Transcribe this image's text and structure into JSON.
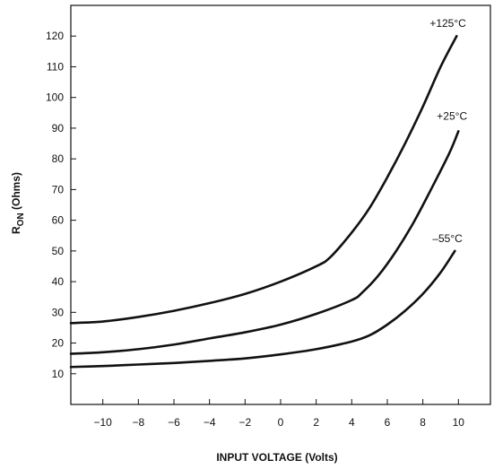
{
  "chart_data": {
    "type": "line",
    "title": "",
    "xlabel": "INPUT VOLTAGE (Volts)",
    "ylabel_main": "R",
    "ylabel_sub": "ON",
    "ylabel_rest": " (Ohms)",
    "xlim": [
      -11.8,
      11.8
    ],
    "ylim": [
      0,
      130
    ],
    "x_ticks": [
      {
        "value": -10,
        "label": "−10"
      },
      {
        "value": -8,
        "label": "−8"
      },
      {
        "value": -6,
        "label": "−6"
      },
      {
        "value": -4,
        "label": "−4"
      },
      {
        "value": -2,
        "label": "−2"
      },
      {
        "value": 0,
        "label": "0"
      },
      {
        "value": 2,
        "label": "2"
      },
      {
        "value": 4,
        "label": "4"
      },
      {
        "value": 6,
        "label": "6"
      },
      {
        "value": 8,
        "label": "8"
      },
      {
        "value": 10,
        "label": "10"
      }
    ],
    "y_ticks": [
      {
        "value": 10,
        "label": "10"
      },
      {
        "value": 20,
        "label": "20"
      },
      {
        "value": 30,
        "label": "30"
      },
      {
        "value": 40,
        "label": "40"
      },
      {
        "value": 50,
        "label": "50"
      },
      {
        "value": 60,
        "label": "60"
      },
      {
        "value": 70,
        "label": "70"
      },
      {
        "value": 80,
        "label": "80"
      },
      {
        "value": 90,
        "label": "90"
      },
      {
        "value": 100,
        "label": "100"
      },
      {
        "value": 110,
        "label": "110"
      },
      {
        "value": 120,
        "label": "120"
      }
    ],
    "grid": false,
    "series": [
      {
        "name": "+125°C",
        "x": [
          -11.8,
          -10,
          -8,
          -6,
          -4,
          -2,
          0,
          2,
          2.8,
          4,
          5,
          6,
          7,
          8,
          9,
          9.9
        ],
        "y": [
          26.5,
          27,
          28.5,
          30.5,
          33,
          36,
          40,
          45,
          48,
          56,
          64,
          74,
          85,
          97,
          110,
          120
        ]
      },
      {
        "name": "+25°C",
        "x": [
          -11.8,
          -10,
          -8,
          -6,
          -4,
          -2,
          0,
          2,
          4,
          4.6,
          5.5,
          6.5,
          7.5,
          8.5,
          9.5,
          10
        ],
        "y": [
          16.5,
          17,
          18,
          19.5,
          21.5,
          23.5,
          26,
          29.5,
          34,
          36.5,
          42,
          50,
          59.5,
          70.5,
          82,
          89
        ]
      },
      {
        "name": "–55°C",
        "x": [
          -11.8,
          -10,
          -8,
          -6,
          -4,
          -2,
          0,
          2,
          4,
          5,
          6,
          7,
          8,
          9,
          9.8
        ],
        "y": [
          12.2,
          12.5,
          13,
          13.5,
          14.2,
          15,
          16.3,
          18,
          20.5,
          22.5,
          26,
          30.5,
          36,
          43,
          50
        ]
      }
    ]
  }
}
